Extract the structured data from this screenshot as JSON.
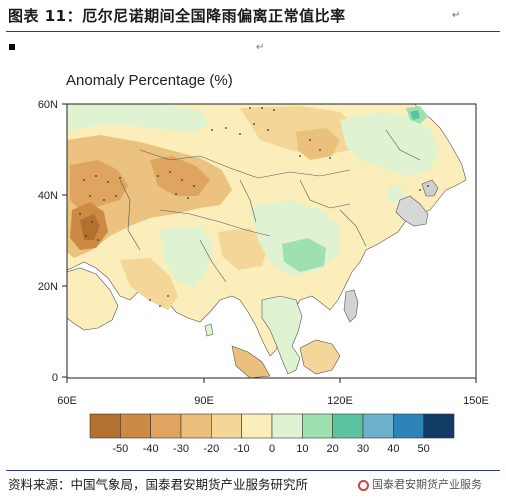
{
  "figure": {
    "title": "图表 11：厄尔尼诺期间全国降雨偏离正常值比率",
    "title_mark": "↵",
    "para_mark": "↵",
    "plot_title": "Anomaly Percentage (%)",
    "source": "资料来源：中国气象局，国泰君安期货产业服务研究所",
    "watermark": "国泰君安期货产业服务"
  },
  "map": {
    "lat_ticks": [
      "60N",
      "40N",
      "20N",
      "0"
    ],
    "lon_ticks": [
      "60E",
      "90E",
      "120E",
      "150E"
    ],
    "colorbar_labels": [
      "-50",
      "-40",
      "-30",
      "-20",
      "-10",
      "0",
      "10",
      "20",
      "30",
      "40",
      "50"
    ],
    "colorbar_colors": [
      "#b3702f",
      "#cc8a45",
      "#dfa560",
      "#ebbf7c",
      "#f3d698",
      "#fbeebb",
      "#dff3d2",
      "#9fe0b0",
      "#5cc3a0",
      "#6cb0cc",
      "#2f84b7",
      "#123b66"
    ],
    "ocean_color": "#ffffff",
    "land_missing_color": "#cfcfcf"
  }
}
